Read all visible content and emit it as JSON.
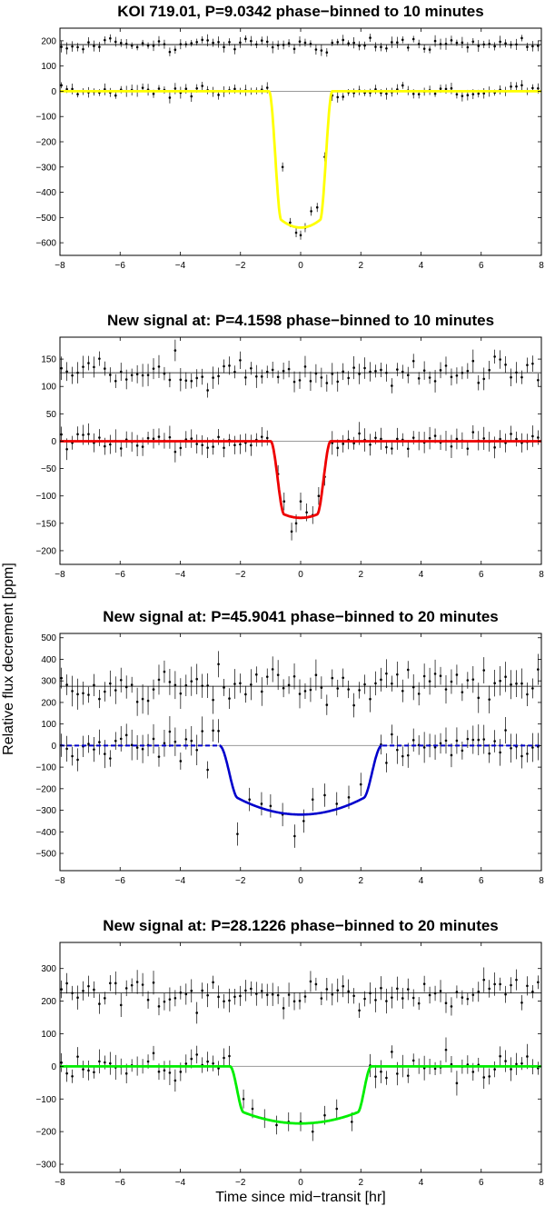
{
  "figure": {
    "ylabel": "Relative flux decrement [ppm]",
    "xlabel": "Time since mid−transit [hr]"
  },
  "colors": {
    "yellow_model": "#ffff00",
    "red_model": "#ee0000",
    "blue_model": "#0000cc",
    "green_model": "#00ee00",
    "data_points": "#000000",
    "zero_line": "#999999",
    "offset_line": "#000000"
  },
  "chart_data": [
    {
      "type": "scatter",
      "title": "KOI 719.01, P=9.0342 phase−binned to 10 minutes",
      "xlim": [
        -8,
        8
      ],
      "ylim": [
        -650,
        250
      ],
      "xticks": [
        -8,
        -6,
        -4,
        -2,
        0,
        2,
        4,
        6,
        8
      ],
      "yticks": [
        200,
        100,
        0,
        -100,
        -200,
        -300,
        -400,
        -500,
        -600
      ],
      "offset_baseline": 185,
      "model": {
        "color": "#ffff00",
        "depth": 540,
        "half_width": 1.05,
        "ingress": 0.4,
        "curvature": 0.15
      },
      "transit_points": [
        {
          "x": -0.6,
          "y": -300
        },
        {
          "x": -0.35,
          "y": -520
        },
        {
          "x": -0.15,
          "y": -560
        },
        {
          "x": 0.0,
          "y": -570
        },
        {
          "x": 0.15,
          "y": -540
        },
        {
          "x": 0.35,
          "y": -475
        },
        {
          "x": 0.55,
          "y": -460
        },
        {
          "x": 0.8,
          "y": -260
        }
      ],
      "scatter_lower": 14,
      "scatter_upper": 18,
      "err_scale": 20
    },
    {
      "type": "scatter",
      "title": "New signal at: P=4.1598 phase−binned to 10 minutes",
      "xlim": [
        -8,
        8
      ],
      "ylim": [
        -225,
        190
      ],
      "xticks": [
        -8,
        -6,
        -4,
        -2,
        0,
        2,
        4,
        6,
        8
      ],
      "yticks": [
        150,
        100,
        50,
        0,
        -50,
        -100,
        -150,
        -200
      ],
      "offset_baseline": 125,
      "model": {
        "color": "#ee0000",
        "depth": 140,
        "half_width": 1.0,
        "ingress": 0.45,
        "curvature": 0.15
      },
      "transit_points": [
        {
          "x": -0.75,
          "y": -60
        },
        {
          "x": -0.55,
          "y": -110
        },
        {
          "x": -0.3,
          "y": -165
        },
        {
          "x": -0.15,
          "y": -150
        },
        {
          "x": 0.0,
          "y": -110
        },
        {
          "x": 0.2,
          "y": -130
        },
        {
          "x": 0.4,
          "y": -135
        },
        {
          "x": 0.6,
          "y": -100
        },
        {
          "x": 0.8,
          "y": -65
        }
      ],
      "scatter_lower": 13,
      "scatter_upper": 18,
      "err_scale": 18
    },
    {
      "type": "scatter",
      "title": "New signal at: P=45.9041 phase−binned to 20 minutes",
      "xlim": [
        -8,
        8
      ],
      "ylim": [
        -580,
        520
      ],
      "xticks": [
        -8,
        -6,
        -4,
        -2,
        0,
        2,
        4,
        6,
        8
      ],
      "yticks": [
        500,
        400,
        300,
        200,
        100,
        0,
        -100,
        -200,
        -300,
        -400,
        -500
      ],
      "offset_baseline": 275,
      "model": {
        "color": "#0000cc",
        "depth": 320,
        "half_width": 2.7,
        "ingress": 0.6,
        "curvature": 0.4,
        "dashed_outside": true
      },
      "transit_points": [
        {
          "x": -2.1,
          "y": -410
        },
        {
          "x": -1.7,
          "y": -250
        },
        {
          "x": -1.3,
          "y": -270
        },
        {
          "x": -1.0,
          "y": -280
        },
        {
          "x": -0.6,
          "y": -320
        },
        {
          "x": -0.2,
          "y": -420
        },
        {
          "x": 0.1,
          "y": -350
        },
        {
          "x": 0.4,
          "y": -250
        },
        {
          "x": 0.8,
          "y": -230
        },
        {
          "x": 1.2,
          "y": -270
        },
        {
          "x": 1.6,
          "y": -240
        },
        {
          "x": 2.0,
          "y": -180
        }
      ],
      "scatter_lower": 70,
      "scatter_upper": 60,
      "err_scale": 60
    },
    {
      "type": "scatter",
      "title": "New signal at: P=28.1226 phase−binned to 20 minutes",
      "xlim": [
        -8,
        8
      ],
      "ylim": [
        -325,
        380
      ],
      "xticks": [
        -8,
        -6,
        -4,
        -2,
        0,
        2,
        4,
        6,
        8
      ],
      "yticks": [
        300,
        200,
        100,
        0,
        -100,
        -200,
        -300
      ],
      "offset_baseline": 225,
      "model": {
        "color": "#00ee00",
        "depth": 175,
        "half_width": 2.35,
        "ingress": 0.45,
        "curvature": 0.3
      },
      "transit_points": [
        {
          "x": -1.9,
          "y": -100
        },
        {
          "x": -1.6,
          "y": -130
        },
        {
          "x": -1.2,
          "y": -160
        },
        {
          "x": -0.8,
          "y": -180
        },
        {
          "x": -0.4,
          "y": -170
        },
        {
          "x": 0.0,
          "y": -170
        },
        {
          "x": 0.4,
          "y": -200
        },
        {
          "x": 0.8,
          "y": -150
        },
        {
          "x": 1.2,
          "y": -130
        },
        {
          "x": 1.7,
          "y": -170
        }
      ],
      "scatter_lower": 30,
      "scatter_upper": 32,
      "err_scale": 32
    }
  ]
}
